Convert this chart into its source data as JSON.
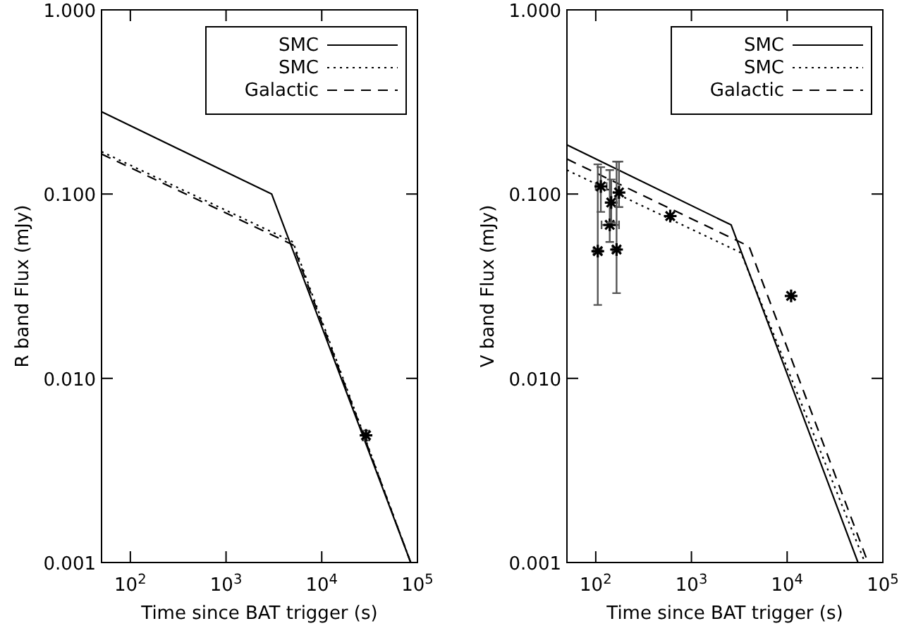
{
  "chart_data": [
    {
      "type": "line",
      "xlabel": "Time since BAT trigger (s)",
      "ylabel": "R band Flux (mJy)",
      "log": "xy",
      "legend": "top right",
      "xlim": [
        50,
        100000
      ],
      "ylim": [
        0.001,
        1
      ],
      "xticks": [
        {
          "value": 100,
          "label": "10$^{2}$"
        },
        {
          "value": 1000,
          "label": "10$^{3}$"
        },
        {
          "value": 10000,
          "label": "10$^{4}$"
        },
        {
          "value": 100000,
          "label": "10$^{5}$"
        }
      ],
      "yticks": [
        {
          "value": 0.001,
          "label": "0.001"
        },
        {
          "value": 0.01,
          "label": "0.010"
        },
        {
          "value": 0.1,
          "label": "0.100"
        },
        {
          "value": 1,
          "label": "1.000"
        }
      ],
      "series": [
        {
          "name": "SMC",
          "color": "#000000",
          "line_style": "solid",
          "x": [
            50,
            3000,
            85000
          ],
          "values": [
            0.28,
            0.1,
            0.001
          ]
        },
        {
          "name": "SMC",
          "color": "#000000",
          "line_style": "dotted",
          "x": [
            50,
            5000,
            85000
          ],
          "values": [
            0.17,
            0.055,
            0.001
          ]
        },
        {
          "name": "Galactic",
          "color": "#000000",
          "line_style": "dashed",
          "x": [
            50,
            5000,
            85000
          ],
          "values": [
            0.165,
            0.053,
            0.001
          ]
        },
        {
          "type": "scatter",
          "color": "#000000",
          "marker": "cross",
          "x": [
            29000
          ],
          "values": [
            0.0049
          ],
          "errors": [
            [
              0.0046,
              0.0052
            ]
          ]
        }
      ]
    },
    {
      "type": "line",
      "xlabel": "Time since BAT trigger (s)",
      "ylabel": "V band Flux (mJy)",
      "log": "xy",
      "legend": "top right",
      "xlim": [
        50,
        100000
      ],
      "ylim": [
        0.001,
        1
      ],
      "xticks": [
        {
          "value": 100,
          "label": "10$^{2}$"
        },
        {
          "value": 1000,
          "label": "10$^{3}$"
        },
        {
          "value": 10000,
          "label": "10$^{4}$"
        },
        {
          "value": 100000,
          "label": "10$^{5}$"
        }
      ],
      "yticks": [
        {
          "value": 0.001,
          "label": "0.001"
        },
        {
          "value": 0.01,
          "label": "0.010"
        },
        {
          "value": 0.1,
          "label": "0.100"
        },
        {
          "value": 1,
          "label": "1.000"
        }
      ],
      "series": [
        {
          "name": "SMC",
          "color": "#000000",
          "line_style": "solid",
          "x": [
            50,
            2600,
            55000
          ],
          "values": [
            0.185,
            0.068,
            0.001
          ]
        },
        {
          "name": "SMC",
          "color": "#000000",
          "line_style": "dotted",
          "x": [
            50,
            3300,
            65000
          ],
          "values": [
            0.135,
            0.048,
            0.001
          ]
        },
        {
          "name": "Galactic",
          "color": "#000000",
          "line_style": "dashed",
          "x": [
            50,
            4000,
            70000
          ],
          "values": [
            0.155,
            0.052,
            0.001
          ]
        },
        {
          "type": "scatter",
          "color": "#000000",
          "marker": "cross",
          "x": [
            105,
            113,
            140,
            145,
            165,
            175,
            600,
            11000
          ],
          "values": [
            0.049,
            0.11,
            0.068,
            0.09,
            0.05,
            0.102,
            0.076,
            0.028
          ],
          "errors": [
            [
              0.025,
              0.145
            ],
            [
              0.08,
              0.14
            ],
            [
              0.055,
              0.135
            ],
            [
              0.07,
              0.12
            ],
            [
              0.029,
              0.15
            ],
            [
              0.085,
              0.15
            ],
            null,
            null
          ],
          "xerrors": [
            [
              95,
              115
            ],
            [
              100,
              130
            ],
            [
              115,
              175
            ],
            null,
            [
              150,
              180
            ],
            null,
            null,
            null
          ]
        }
      ]
    }
  ]
}
